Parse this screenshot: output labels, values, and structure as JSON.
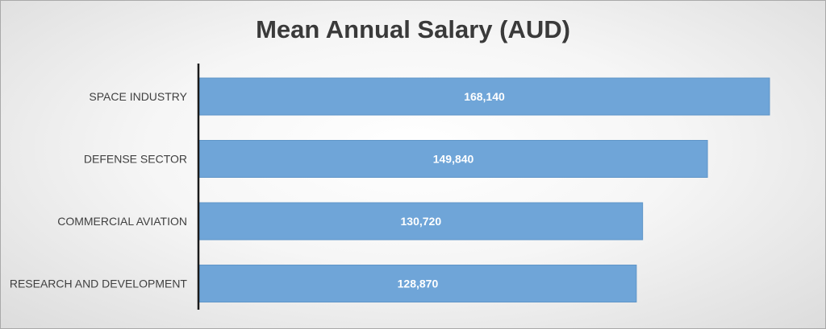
{
  "chart_data": {
    "type": "bar",
    "orientation": "horizontal",
    "title": "Mean Annual Salary (AUD)",
    "categories": [
      "SPACE INDUSTRY",
      "DEFENSE SECTOR",
      "COMMERCIAL AVIATION",
      "RESEARCH AND DEVELOPMENT"
    ],
    "values": [
      168140,
      149840,
      130720,
      128870
    ],
    "value_labels": [
      "168,140",
      "149,840",
      "130,720",
      "128,870"
    ],
    "xlim": [
      0,
      168140
    ],
    "grid": false,
    "legend": "none",
    "bar_color": "#6fa5d8",
    "axis_color": "#1a1a1a"
  }
}
